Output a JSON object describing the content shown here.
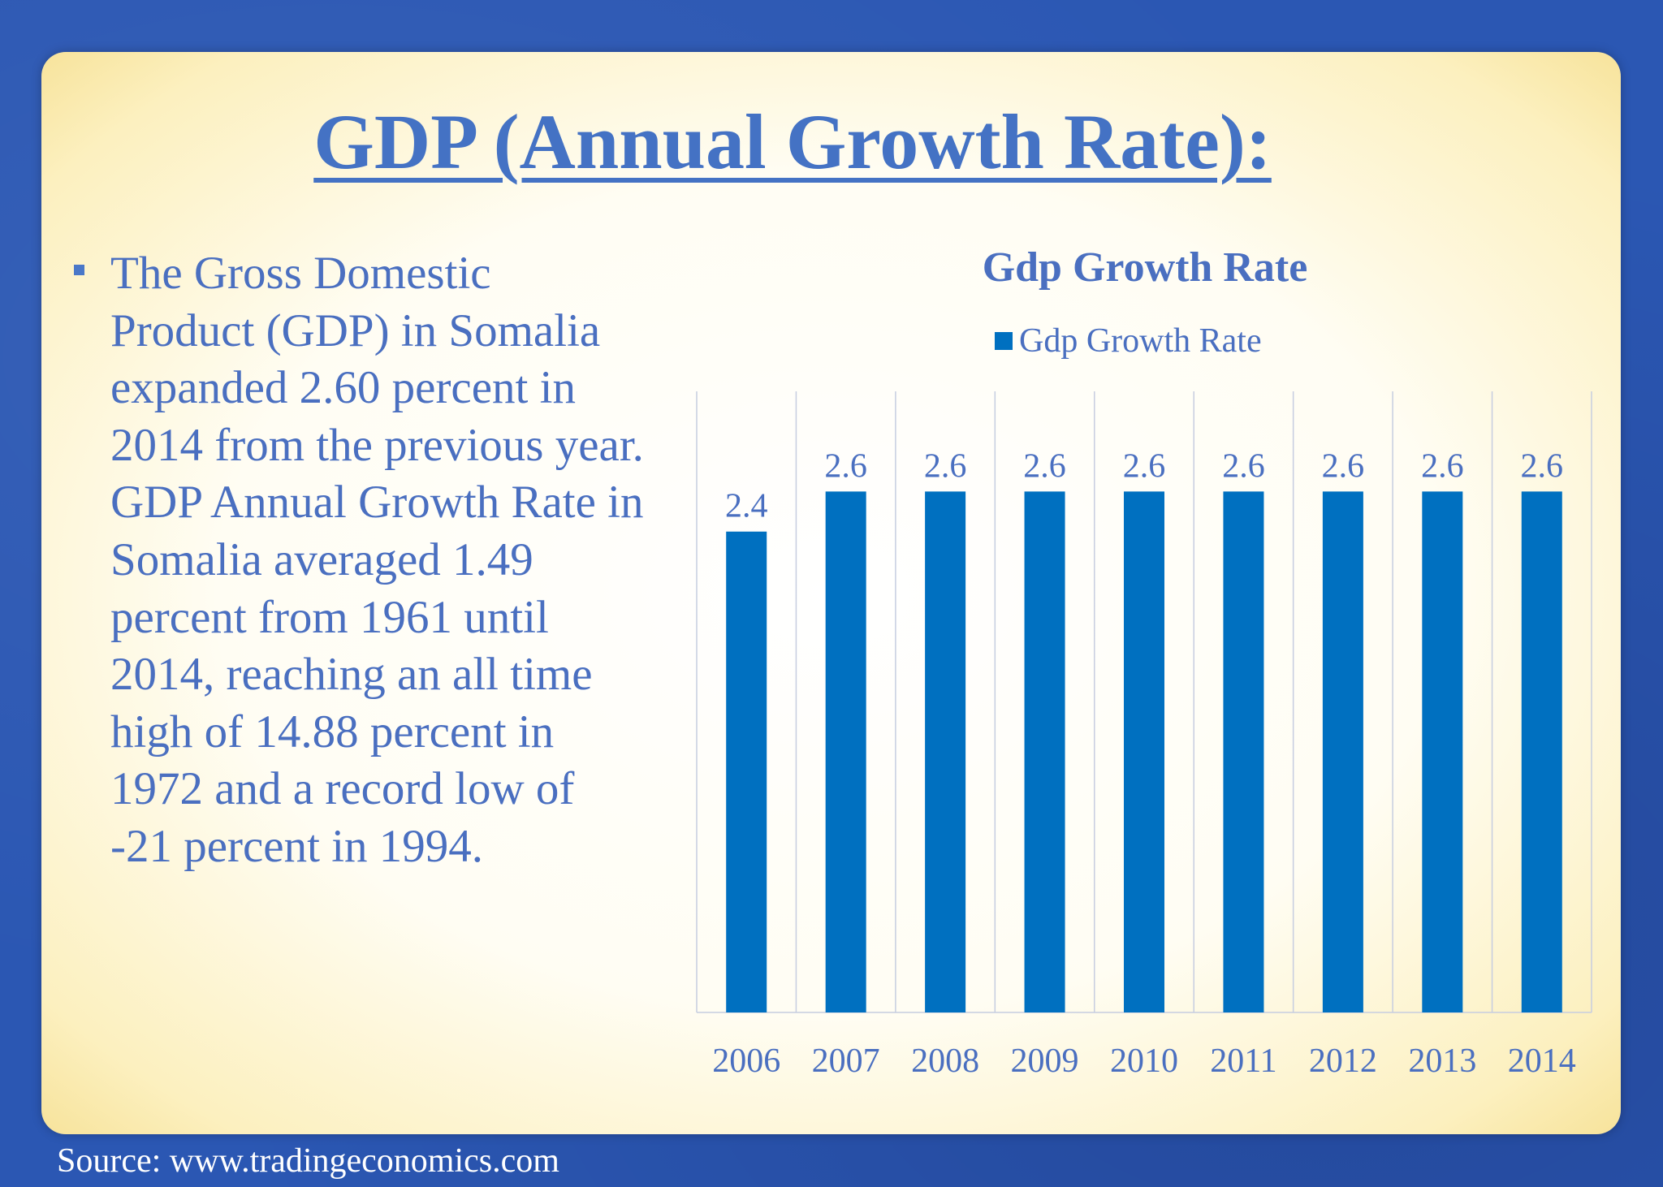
{
  "slide": {
    "title": "GDP (Annual Growth Rate):",
    "body": "The Gross Domestic Product (GDP) in Somalia expanded 2.60 percent in 2014 from the previous year. GDP Annual Growth Rate in Somalia averaged 1.49 percent from 1961 until 2014, reaching an all time high of 14.88 percent in 1972 and a record low of -21 percent in 1994.",
    "source": "Source: www.tradingeconomics.com"
  },
  "colors": {
    "background": "#2b57b3",
    "text": "#4a6fc0",
    "bar": "#0070c0"
  },
  "chart_data": {
    "type": "bar",
    "title": "Gdp Growth Rate",
    "legend": [
      "Gdp Growth Rate"
    ],
    "legend_position": "top",
    "categories": [
      "2006",
      "2007",
      "2008",
      "2009",
      "2010",
      "2011",
      "2012",
      "2013",
      "2014"
    ],
    "series": [
      {
        "name": "Gdp Growth Rate",
        "values": [
          2.4,
          2.6,
          2.6,
          2.6,
          2.6,
          2.6,
          2.6,
          2.6,
          2.6
        ]
      }
    ],
    "data_labels": [
      "2.4",
      "2.6",
      "2.6",
      "2.6",
      "2.6",
      "2.6",
      "2.6",
      "2.6",
      "2.6"
    ],
    "xlabel": "",
    "ylabel": "",
    "ylim": [
      0,
      3.1
    ],
    "grid": "vertical"
  }
}
